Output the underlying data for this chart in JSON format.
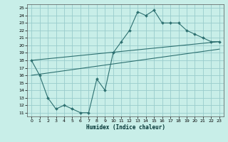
{
  "xlabel": "Humidex (Indice chaleur)",
  "bg_color": "#c8eee8",
  "grid_color": "#99cccc",
  "line_color": "#2d7070",
  "xlim": [
    -0.5,
    23.5
  ],
  "ylim": [
    10.5,
    25.5
  ],
  "xticks": [
    0,
    1,
    2,
    3,
    4,
    5,
    6,
    7,
    8,
    9,
    10,
    11,
    12,
    13,
    14,
    15,
    16,
    17,
    18,
    19,
    20,
    21,
    22,
    23
  ],
  "yticks": [
    11,
    12,
    13,
    14,
    15,
    16,
    17,
    18,
    19,
    20,
    21,
    22,
    23,
    24,
    25
  ],
  "line1_x": [
    0,
    1,
    2,
    3,
    4,
    5,
    6,
    7,
    8,
    9,
    10,
    11,
    12,
    13,
    14,
    15,
    16,
    17,
    18,
    19,
    20,
    21,
    22,
    23
  ],
  "line1_y": [
    18,
    16,
    13,
    11.5,
    12,
    11.5,
    11,
    11,
    15.5,
    14,
    19,
    20.5,
    22,
    24.5,
    24,
    24.7,
    23,
    23,
    23,
    22,
    21.5,
    21,
    20.5,
    20.5
  ],
  "line2_x": [
    0,
    23
  ],
  "line2_y": [
    18,
    20.5
  ],
  "line3_x": [
    0,
    23
  ],
  "line3_y": [
    16,
    19.5
  ]
}
